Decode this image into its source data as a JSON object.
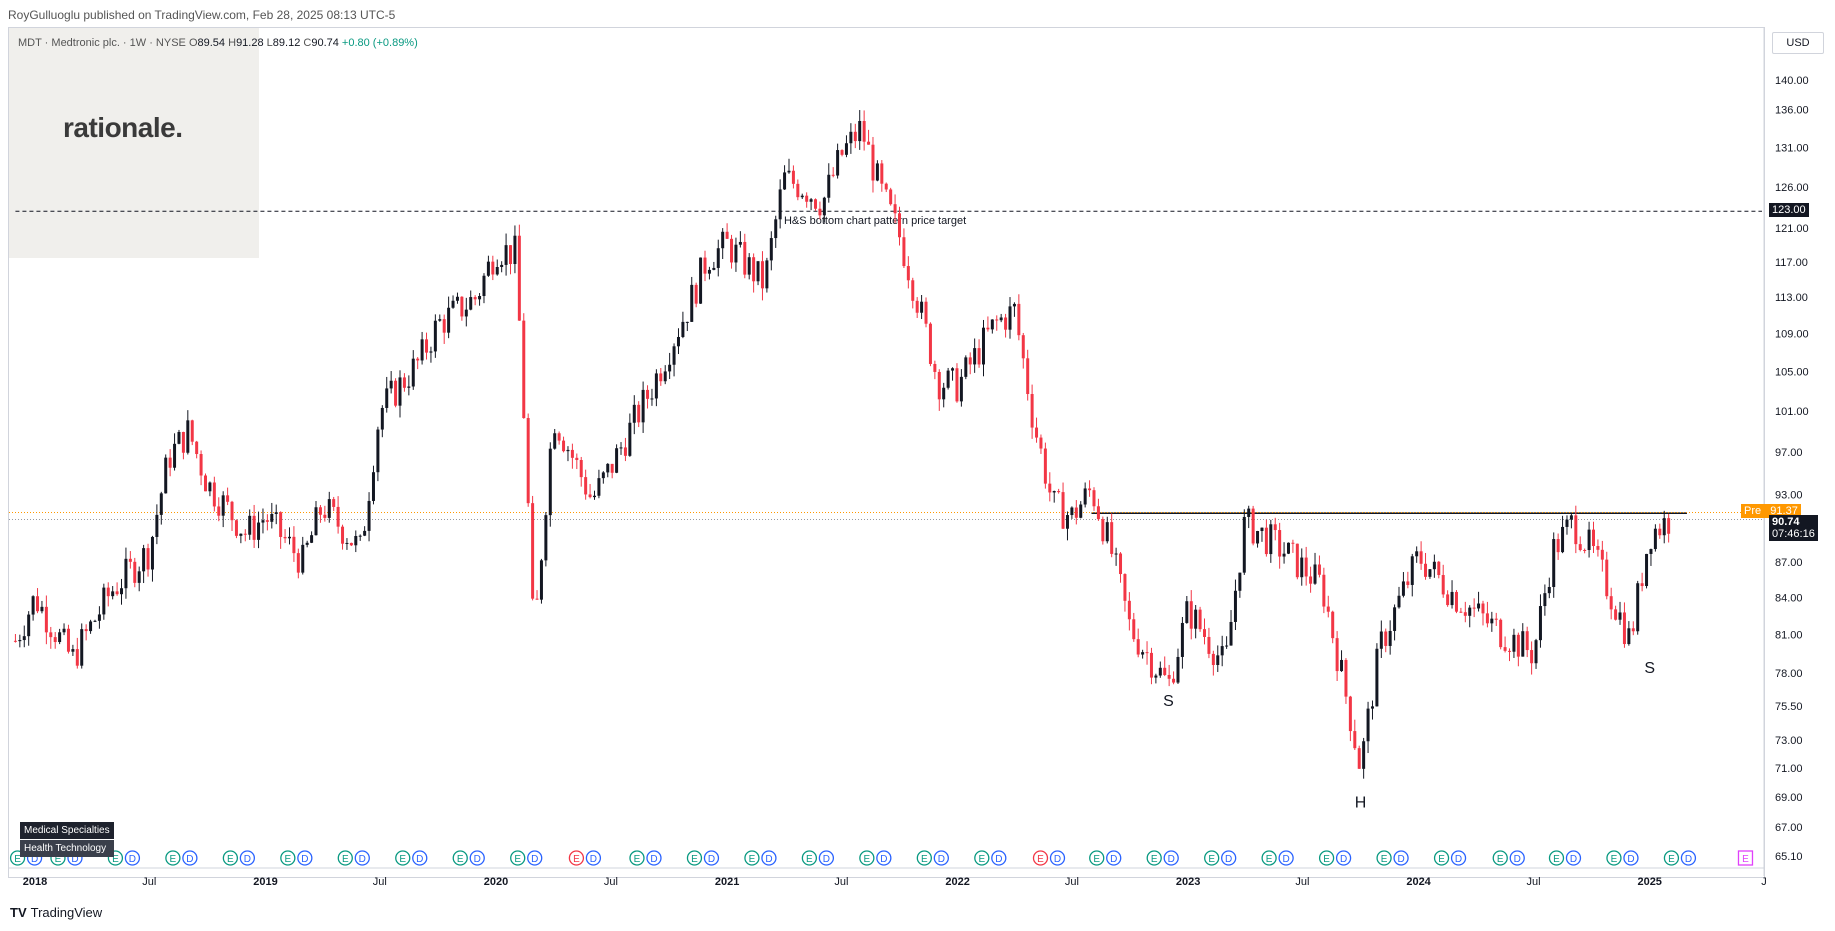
{
  "header": {
    "published": "RoyGulluoglu published on TradingView.com, Feb 28, 2025 08:13 UTC-5"
  },
  "legend": {
    "symbol": "MDT · Medtronic plc. · 1W · NYSE",
    "o_label": "O",
    "o": "89.54",
    "h_label": "H",
    "h": "91.28",
    "l_label": "L",
    "l": "89.12",
    "c_label": "C",
    "c": "90.74",
    "change": "+0.80 (+0.89%)"
  },
  "watermark": "rationale.",
  "currency": "USD",
  "labels": {
    "target_price": "123.00",
    "pre_label": "Pre",
    "pre_price": "91.37",
    "last_price": "90.74",
    "countdown": "07:46:16",
    "sector": "Medical Specialties",
    "industry": "Health Technology"
  },
  "footer": {
    "brand": "TradingView"
  },
  "colors": {
    "up": "#089981",
    "down": "#f23645",
    "candle_up": "#131722",
    "candle_down": "#f23645",
    "pre": "#ff9800"
  },
  "chart_data": {
    "type": "candlestick",
    "title": "MDT · Medtronic plc. · 1W · NYSE",
    "ylim": [
      65.1,
      140.0
    ],
    "y_scale": "log",
    "y_ticks": [
      140.0,
      136.0,
      131.0,
      126.0,
      121.0,
      117.0,
      113.0,
      109.0,
      105.0,
      101.0,
      97.0,
      93.0,
      87.0,
      84.0,
      81.0,
      78.0,
      75.5,
      73.0,
      71.0,
      69.0,
      67.0,
      65.1
    ],
    "x_ticks": [
      "2018",
      "Jul",
      "2019",
      "Jul",
      "2020",
      "Jul",
      "2021",
      "Jul",
      "2022",
      "Jul",
      "2023",
      "Jul",
      "2024",
      "Jul",
      "2025",
      "J"
    ],
    "x_tick_dates": [
      "2018-01",
      "2018-07",
      "2019-01",
      "2019-07",
      "2020-01",
      "2020-07",
      "2021-01",
      "2021-07",
      "2022-01",
      "2022-07",
      "2023-01",
      "2023-07",
      "2024-01",
      "2024-07",
      "2025-01",
      "2025-07"
    ],
    "price_path": [
      [
        "2017-12",
        80.5
      ],
      [
        "2018-01",
        84.0
      ],
      [
        "2018-03",
        79.0
      ],
      [
        "2018-05",
        84.5
      ],
      [
        "2018-07",
        88.0
      ],
      [
        "2018-08",
        96.5
      ],
      [
        "2018-09",
        99.0
      ],
      [
        "2018-10",
        94.0
      ],
      [
        "2018-12",
        89.5
      ],
      [
        "2019-01",
        91.0
      ],
      [
        "2019-03",
        87.0
      ],
      [
        "2019-04",
        92.0
      ],
      [
        "2019-06",
        88.0
      ],
      [
        "2019-07",
        101.0
      ],
      [
        "2019-09",
        106.0
      ],
      [
        "2019-10",
        110.0
      ],
      [
        "2019-12",
        113.0
      ],
      [
        "2020-01",
        118.5
      ],
      [
        "2020-02",
        118.0
      ],
      [
        "2020-03",
        80.0
      ],
      [
        "2020-04",
        100.5
      ],
      [
        "2020-06",
        92.5
      ],
      [
        "2020-07",
        95.5
      ],
      [
        "2020-09",
        103.0
      ],
      [
        "2020-11",
        112.0
      ],
      [
        "2020-12",
        117.5
      ],
      [
        "2021-01",
        119.0
      ],
      [
        "2021-03",
        114.5
      ],
      [
        "2021-04",
        127.0
      ],
      [
        "2021-05",
        126.0
      ],
      [
        "2021-06",
        124.0
      ],
      [
        "2021-07",
        130.0
      ],
      [
        "2021-08",
        133.5
      ],
      [
        "2021-09",
        125.5
      ],
      [
        "2021-10",
        120.0
      ],
      [
        "2021-11",
        112.0
      ],
      [
        "2021-12",
        104.0
      ],
      [
        "2022-01",
        103.5
      ],
      [
        "2022-03",
        110.0
      ],
      [
        "2022-04",
        111.5
      ],
      [
        "2022-05",
        100.0
      ],
      [
        "2022-06",
        92.0
      ],
      [
        "2022-07",
        91.0
      ],
      [
        "2022-08",
        93.5
      ],
      [
        "2022-09",
        88.0
      ],
      [
        "2022-10",
        81.5
      ],
      [
        "2022-12",
        77.0
      ],
      [
        "2023-01",
        83.0
      ],
      [
        "2023-03",
        78.5
      ],
      [
        "2023-04",
        90.5
      ],
      [
        "2023-06",
        88.0
      ],
      [
        "2023-08",
        85.0
      ],
      [
        "2023-10",
        71.0
      ],
      [
        "2023-11",
        80.0
      ],
      [
        "2024-01",
        87.5
      ],
      [
        "2024-03",
        84.0
      ],
      [
        "2024-05",
        81.5
      ],
      [
        "2024-07",
        79.5
      ],
      [
        "2024-08",
        88.0
      ],
      [
        "2024-09",
        90.5
      ],
      [
        "2024-10",
        88.0
      ],
      [
        "2024-12",
        80.5
      ],
      [
        "2025-01",
        89.5
      ],
      [
        "2025-02",
        90.74
      ]
    ],
    "horizontal_lines": [
      {
        "price": 123.0,
        "style": "dashed",
        "start": "2017-12",
        "label": "H&S bottom chart pattern price target"
      },
      {
        "price": 91.3,
        "style": "solid",
        "start": "2022-08",
        "end": "2025-03"
      }
    ],
    "pattern_labels": [
      {
        "text": "S",
        "date": "2022-12",
        "price": 75.5
      },
      {
        "text": "H",
        "date": "2023-10",
        "price": 68.3
      },
      {
        "text": "S",
        "date": "2025-01",
        "price": 78.0
      }
    ],
    "events": {
      "earnings_label": "E",
      "dividend_label": "D",
      "earnings_dates": [
        "2017-12-18",
        "2018-02-20",
        "2018-05-22",
        "2018-08-21",
        "2018-11-20",
        "2019-02-19",
        "2019-05-21",
        "2019-08-20",
        "2019-11-19",
        "2020-02-18",
        "2020-05-21",
        "2020-08-25",
        "2020-11-24",
        "2021-02-23",
        "2021-05-25",
        "2021-08-24",
        "2021-11-23",
        "2022-02-22",
        "2022-05-26",
        "2022-08-23",
        "2022-11-22",
        "2023-02-21",
        "2023-05-23",
        "2023-08-22",
        "2023-11-21",
        "2024-02-20",
        "2024-05-23",
        "2024-08-20",
        "2024-11-19",
        "2025-02-18"
      ],
      "negative_earnings_dates": [
        "2020-05-21",
        "2022-05-26"
      ],
      "upcoming_earnings": "2025-05-20"
    }
  }
}
